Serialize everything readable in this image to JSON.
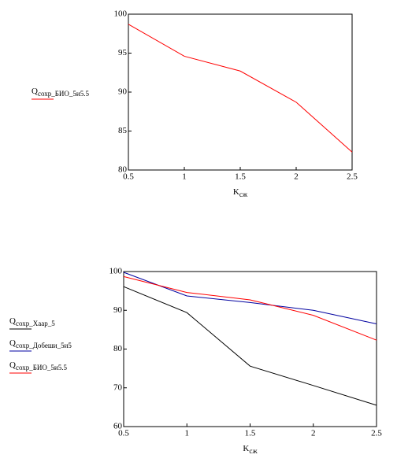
{
  "chart_data": [
    {
      "type": "line",
      "x": [
        0.5,
        1,
        1.5,
        2,
        2.5
      ],
      "xlabel": {
        "text": "K",
        "sub": "сж"
      },
      "xlim": [
        0.5,
        2.5
      ],
      "xticks": [
        0.5,
        1,
        1.5,
        2,
        2.5
      ],
      "ylim": [
        80,
        100
      ],
      "yticks": [
        80,
        85,
        90,
        95,
        100
      ],
      "grid": false,
      "legend": "left",
      "series": [
        {
          "name": {
            "text": "Q",
            "sub": "сохр_БИО_5и5.5"
          },
          "color": "#ff0000",
          "values": [
            98.7,
            94.6,
            92.7,
            88.7,
            82.3
          ]
        }
      ]
    },
    {
      "type": "line",
      "x": [
        0.5,
        1,
        1.5,
        2,
        2.5
      ],
      "xlabel": {
        "text": "K",
        "sub": "сж"
      },
      "xlim": [
        0.5,
        2.5
      ],
      "xticks": [
        0.5,
        1,
        1.5,
        2,
        2.5
      ],
      "ylim": [
        60,
        100
      ],
      "yticks": [
        60,
        70,
        80,
        90,
        100
      ],
      "grid": false,
      "legend": "left",
      "series": [
        {
          "name": {
            "text": "Q",
            "sub": "сохр_Хаар_5"
          },
          "color": "#000000",
          "values": [
            96.1,
            89.4,
            75.6,
            70.6,
            65.5
          ]
        },
        {
          "name": {
            "text": "Q",
            "sub": "сохр_Добеши_5и5"
          },
          "color": "#0000a0",
          "values": [
            99.8,
            93.7,
            92.0,
            90.0,
            86.5
          ]
        },
        {
          "name": {
            "text": "Q",
            "sub": "сохр_БИО_5и5.5"
          },
          "color": "#ff0000",
          "values": [
            98.7,
            94.6,
            92.7,
            88.7,
            82.3
          ]
        }
      ]
    }
  ]
}
